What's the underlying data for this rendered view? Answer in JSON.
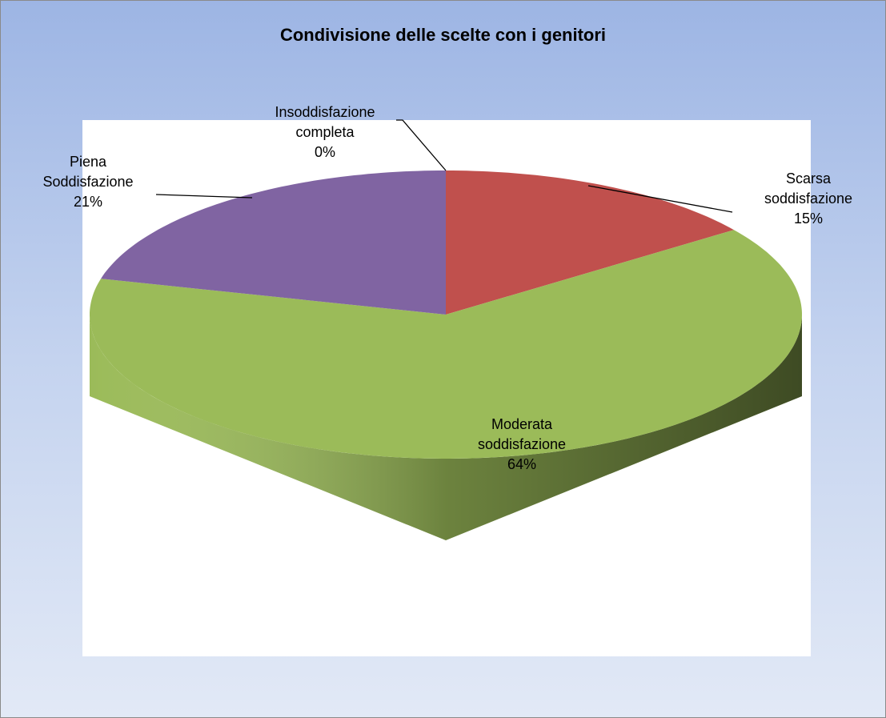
{
  "chart_data": {
    "type": "pie",
    "title": "Condivisione delle scelte con i genitori",
    "categories": [
      "Insoddisfazione completa",
      "Scarsa soddisfazione",
      "Moderata soddisfazione",
      "Piena Soddisfazione"
    ],
    "values": [
      0,
      15,
      64,
      21
    ],
    "value_labels": [
      "0%",
      "15%",
      "64%",
      "21%"
    ],
    "colors": [
      "#4f81bd",
      "#c0504d",
      "#9bbb59",
      "#8064a2"
    ],
    "style": "3d"
  }
}
